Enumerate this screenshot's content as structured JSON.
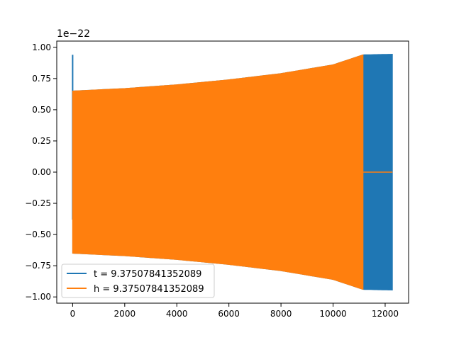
{
  "chart_data": {
    "type": "line",
    "title": "",
    "xlabel": "",
    "ylabel": "",
    "offset_text": "1e−22",
    "xlim": [
      -610,
      12900
    ],
    "ylim": [
      -1.05,
      1.05
    ],
    "x_ticks": [
      0,
      2000,
      4000,
      6000,
      8000,
      10000,
      12000
    ],
    "x_tick_labels": [
      "0",
      "2000",
      "4000",
      "6000",
      "8000",
      "10000",
      "12000"
    ],
    "y_ticks": [
      -1.0,
      -0.75,
      -0.5,
      -0.25,
      0.0,
      0.25,
      0.5,
      0.75,
      1.0
    ],
    "y_tick_labels": [
      "−1.00",
      "−0.75",
      "−0.50",
      "−0.25",
      "0.00",
      "0.25",
      "0.50",
      "0.75",
      "1.00"
    ],
    "grid": false,
    "legend_position": "lower-left",
    "series": [
      {
        "name": "t = 9.37507841352089",
        "color": "#1f77b4",
        "x_start": 0,
        "x_end": 12280,
        "spike": {
          "x": 0,
          "y_max": 0.94,
          "y_min": -0.38
        },
        "envelope": {
          "x": [
            0,
            2000,
            4000,
            6000,
            8000,
            10000,
            11150,
            12280
          ],
          "amplitude": [
            0.65,
            0.67,
            0.7,
            0.74,
            0.79,
            0.86,
            0.94,
            0.945
          ]
        }
      },
      {
        "name": "h = 9.37507841352089",
        "color": "#ff7f0e",
        "x_start": 0,
        "x_end": 11150,
        "zero_after": {
          "x_from": 11150,
          "x_to": 12280,
          "y": 0.0
        },
        "envelope": {
          "x": [
            0,
            2000,
            4000,
            6000,
            8000,
            10000,
            11150
          ],
          "amplitude": [
            0.65,
            0.67,
            0.7,
            0.74,
            0.79,
            0.86,
            0.94
          ]
        }
      }
    ]
  }
}
